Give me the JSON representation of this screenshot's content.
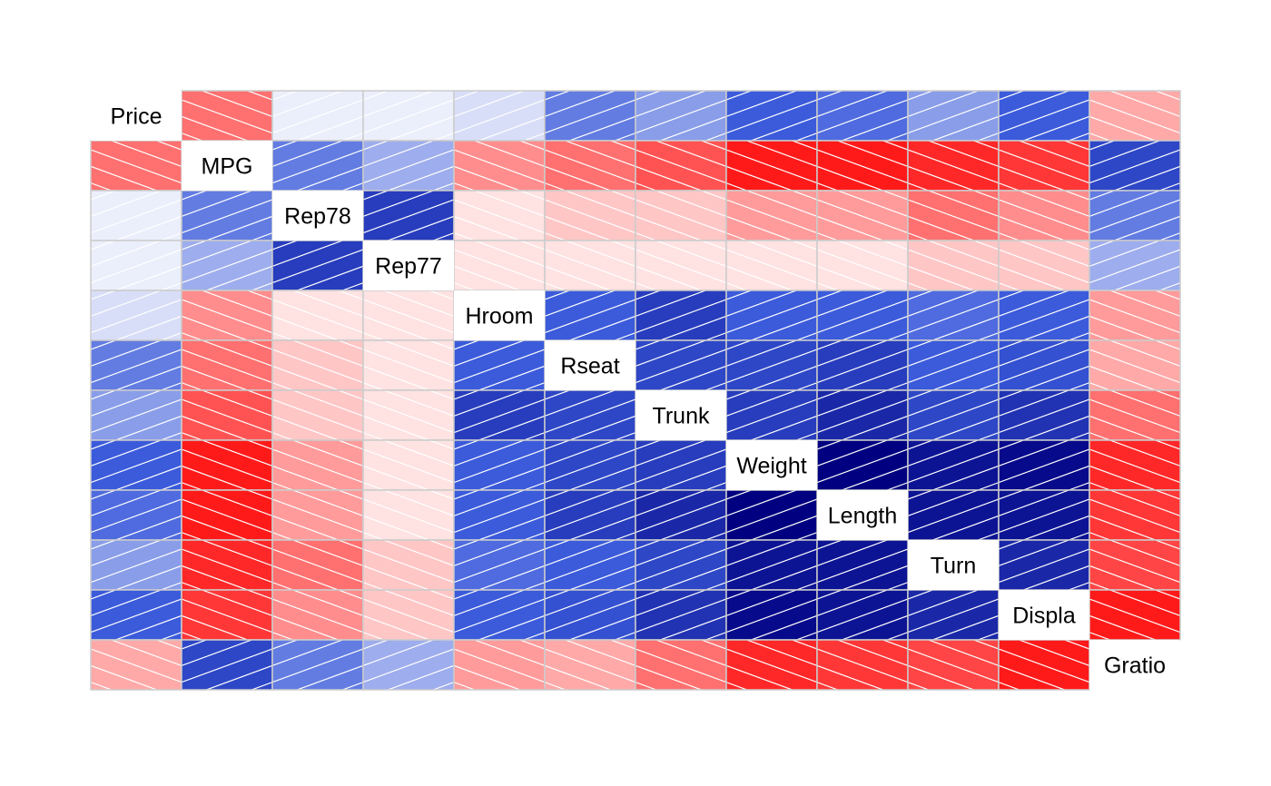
{
  "chart_data": {
    "type": "heatmap",
    "subtype": "correlogram",
    "variables": [
      "Price",
      "MPG",
      "Rep78",
      "Rep77",
      "Hroom",
      "Rseat",
      "Trunk",
      "Weight",
      "Length",
      "Turn",
      "Displa",
      "Gratio"
    ],
    "correlation_matrix": [
      [
        1.0,
        -0.5,
        0.05,
        0.05,
        0.1,
        0.4,
        0.3,
        0.5,
        0.45,
        0.3,
        0.5,
        -0.3
      ],
      [
        -0.5,
        1.0,
        0.4,
        0.25,
        -0.4,
        -0.5,
        -0.6,
        -0.8,
        -0.8,
        -0.75,
        -0.7,
        0.6
      ],
      [
        0.05,
        0.4,
        1.0,
        0.65,
        -0.1,
        -0.2,
        -0.2,
        -0.35,
        -0.35,
        -0.5,
        -0.4,
        0.4
      ],
      [
        0.05,
        0.25,
        0.65,
        1.0,
        -0.1,
        -0.1,
        -0.1,
        -0.1,
        -0.1,
        -0.2,
        -0.2,
        0.25
      ],
      [
        0.1,
        -0.4,
        -0.1,
        -0.1,
        1.0,
        0.5,
        0.65,
        0.5,
        0.5,
        0.45,
        0.5,
        -0.35
      ],
      [
        0.4,
        -0.5,
        -0.2,
        -0.1,
        0.5,
        1.0,
        0.6,
        0.6,
        0.65,
        0.5,
        0.55,
        -0.3
      ],
      [
        0.3,
        -0.6,
        -0.2,
        -0.1,
        0.65,
        0.6,
        1.0,
        0.65,
        0.75,
        0.6,
        0.7,
        -0.5
      ],
      [
        0.5,
        -0.8,
        -0.35,
        -0.1,
        0.5,
        0.6,
        0.65,
        1.0,
        0.95,
        0.85,
        0.9,
        -0.75
      ],
      [
        0.45,
        -0.8,
        -0.35,
        -0.1,
        0.5,
        0.65,
        0.75,
        0.95,
        1.0,
        0.85,
        0.85,
        -0.7
      ],
      [
        0.3,
        -0.75,
        -0.5,
        -0.2,
        0.45,
        0.5,
        0.6,
        0.85,
        0.85,
        1.0,
        0.75,
        -0.65
      ],
      [
        0.5,
        -0.7,
        -0.4,
        -0.2,
        0.5,
        0.55,
        0.7,
        0.9,
        0.85,
        0.75,
        1.0,
        -0.8
      ],
      [
        -0.3,
        0.6,
        0.4,
        0.25,
        -0.35,
        -0.3,
        -0.5,
        -0.75,
        -0.7,
        -0.65,
        -0.8,
        1.0
      ]
    ],
    "range": [
      -1,
      1
    ],
    "colors": {
      "negative": "#ff1a1a",
      "neutral": "#ffffff",
      "positive": "#000080",
      "cell_border": "#cccccc",
      "hatch": "#ffffff"
    },
    "hatch": {
      "positive": "slash (/) lines",
      "negative": "backslash (\\) lines"
    },
    "diagonal": "variable labels",
    "legend": "none"
  }
}
